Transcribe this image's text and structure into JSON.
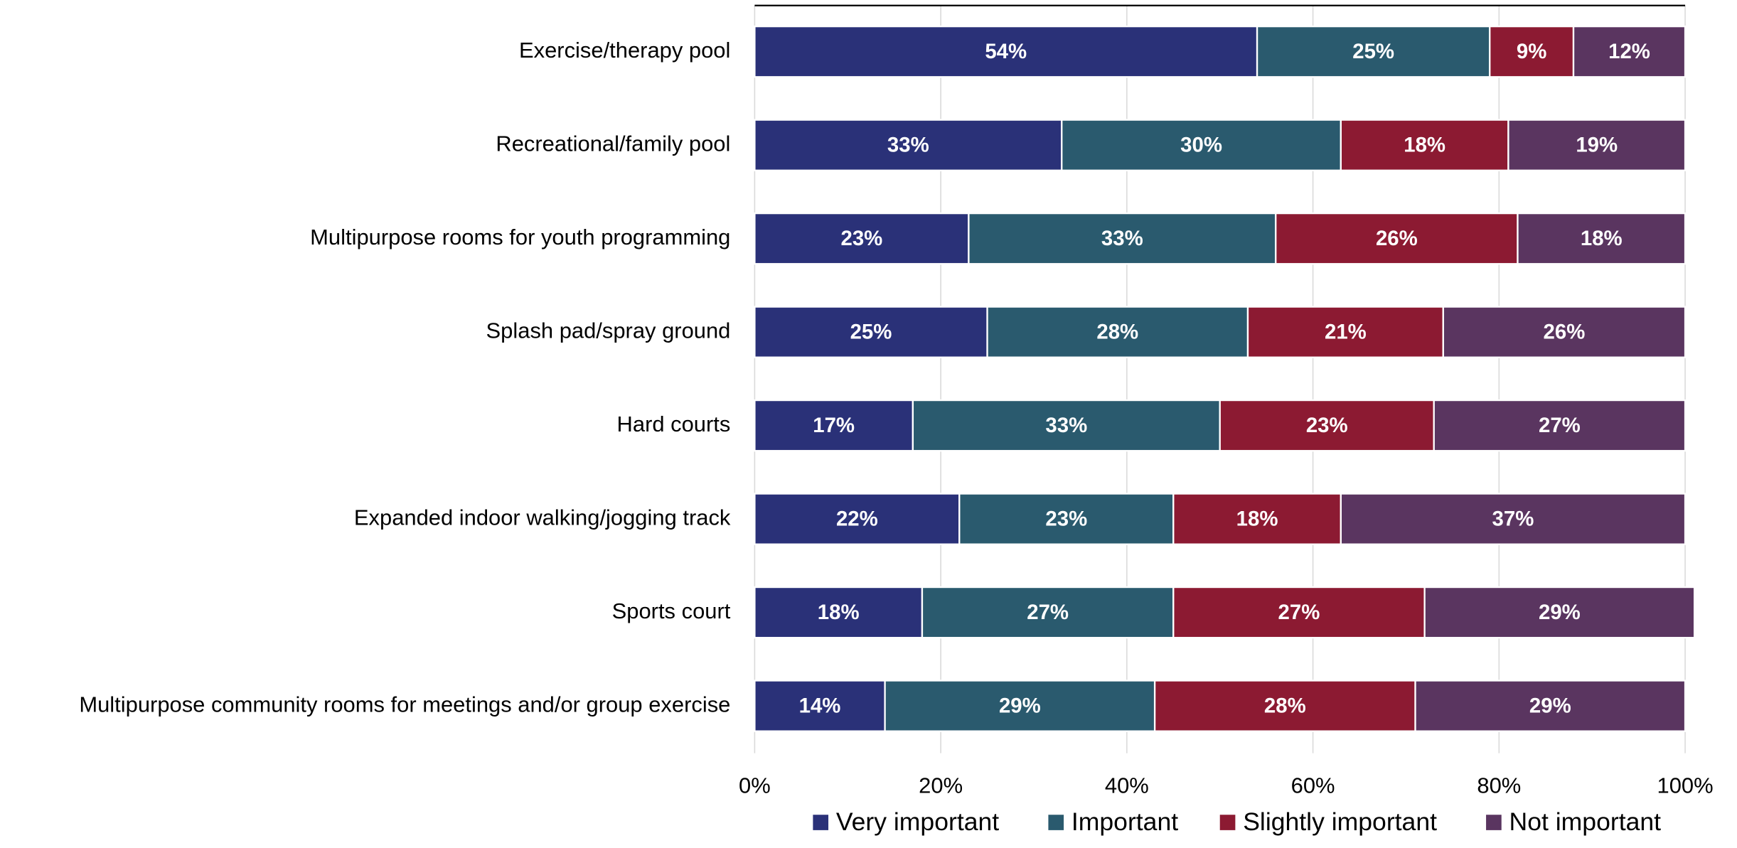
{
  "chart_data": {
    "type": "stacked_bar_horizontal",
    "categories": [
      "Exercise/therapy pool",
      "Recreational/family pool",
      "Multipurpose rooms for youth programming",
      "Splash pad/spray ground",
      "Hard courts",
      "Expanded indoor walking/jogging track",
      "Sports court",
      "Multipurpose community rooms for meetings and/or group exercise"
    ],
    "series": [
      {
        "name": "Very important",
        "color": "#2a3178",
        "values": [
          54,
          33,
          23,
          25,
          17,
          22,
          18,
          14
        ],
        "value_labels": [
          "54%",
          "33%",
          "23%",
          "25%",
          "17%",
          "22%",
          "18%",
          "14%"
        ]
      },
      {
        "name": "Important",
        "color": "#2a5a6e",
        "values": [
          25,
          30,
          33,
          28,
          33,
          23,
          27,
          29
        ],
        "value_labels": [
          "25%",
          "30%",
          "33%",
          "28%",
          "33%",
          "23%",
          "27%",
          "29%"
        ]
      },
      {
        "name": "Slightly important",
        "color": "#8c1a32",
        "values": [
          9,
          18,
          26,
          21,
          23,
          18,
          27,
          28
        ],
        "value_labels": [
          "9%",
          "18%",
          "26%",
          "21%",
          "23%",
          "18%",
          "27%",
          "28%"
        ]
      },
      {
        "name": "Not important",
        "color": "#5a3560",
        "values": [
          12,
          19,
          18,
          26,
          27,
          37,
          29,
          29
        ],
        "value_labels": [
          "12%",
          "19%",
          "18%",
          "26%",
          "27%",
          "37%",
          "29%",
          "29%"
        ]
      }
    ],
    "xlim": [
      0,
      100
    ],
    "xticks": [
      {
        "value": 0,
        "label": "0%"
      },
      {
        "value": 20,
        "label": "20%"
      },
      {
        "value": 40,
        "label": "40%"
      },
      {
        "value": 60,
        "label": "60%"
      },
      {
        "value": 80,
        "label": "80%"
      },
      {
        "value": 100,
        "label": "100%"
      }
    ],
    "grid": true,
    "legend": "bottom"
  }
}
